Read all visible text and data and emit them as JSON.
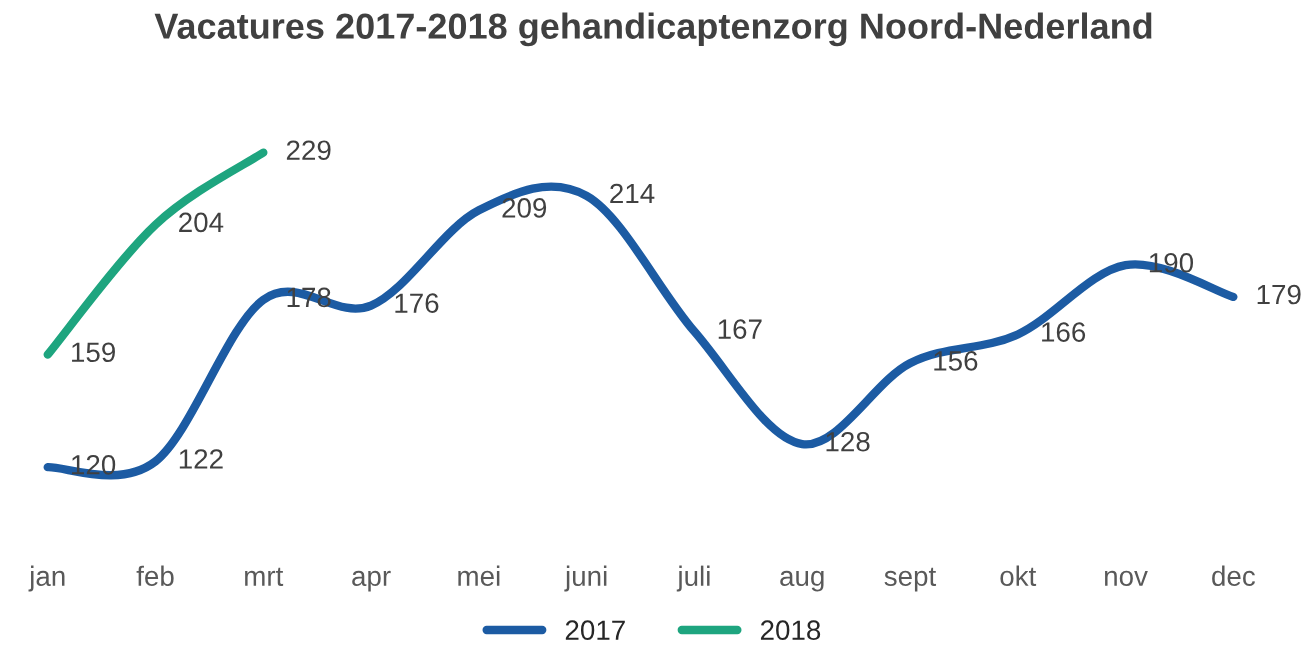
{
  "chart_data": {
    "type": "line",
    "title": "Vacatures 2017-2018 gehandicaptenzorg Noord-Nederland",
    "categories": [
      "jan",
      "feb",
      "mrt",
      "apr",
      "mei",
      "juni",
      "juli",
      "aug",
      "sept",
      "okt",
      "nov",
      "dec"
    ],
    "series": [
      {
        "name": "2017",
        "color": "#1c5ba3",
        "values": [
          120,
          122,
          178,
          176,
          209,
          214,
          167,
          128,
          156,
          166,
          190,
          179
        ]
      },
      {
        "name": "2018",
        "color": "#1ea57f",
        "values": [
          159,
          204,
          229,
          null,
          null,
          null,
          null,
          null,
          null,
          null,
          null,
          null
        ]
      }
    ],
    "data_labels": true,
    "legend": "bottom",
    "grid": false,
    "marker": "none",
    "line_style": "solid",
    "tick_labels": "x"
  }
}
